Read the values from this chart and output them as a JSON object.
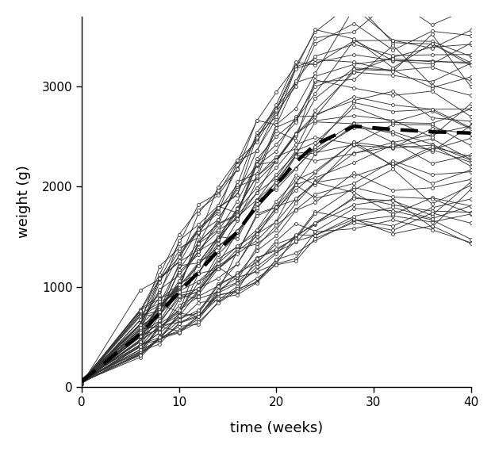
{
  "time_points": [
    0,
    6,
    8,
    10,
    12,
    14,
    16,
    18,
    20,
    22,
    24,
    28,
    32,
    36,
    40
  ],
  "n_chickens": 50,
  "seed": 7,
  "xlabel": "time (weeks)",
  "ylabel": "weight (g)",
  "xlim": [
    0,
    40
  ],
  "ylim": [
    0,
    3700
  ],
  "xticks": [
    0,
    10,
    20,
    30,
    40
  ],
  "yticks": [
    0,
    1000,
    2000,
    3000
  ],
  "line_color": "#333333",
  "line_lw": 0.65,
  "marker": "o",
  "marker_size": 2.8,
  "marker_facecolor": "white",
  "marker_edgecolor": "#333333",
  "marker_edgewidth": 0.6,
  "mean_line_color": "black",
  "mean_line_lw": 3.2,
  "background_color": "white",
  "figsize": [
    6.24,
    5.7
  ],
  "dpi": 100
}
